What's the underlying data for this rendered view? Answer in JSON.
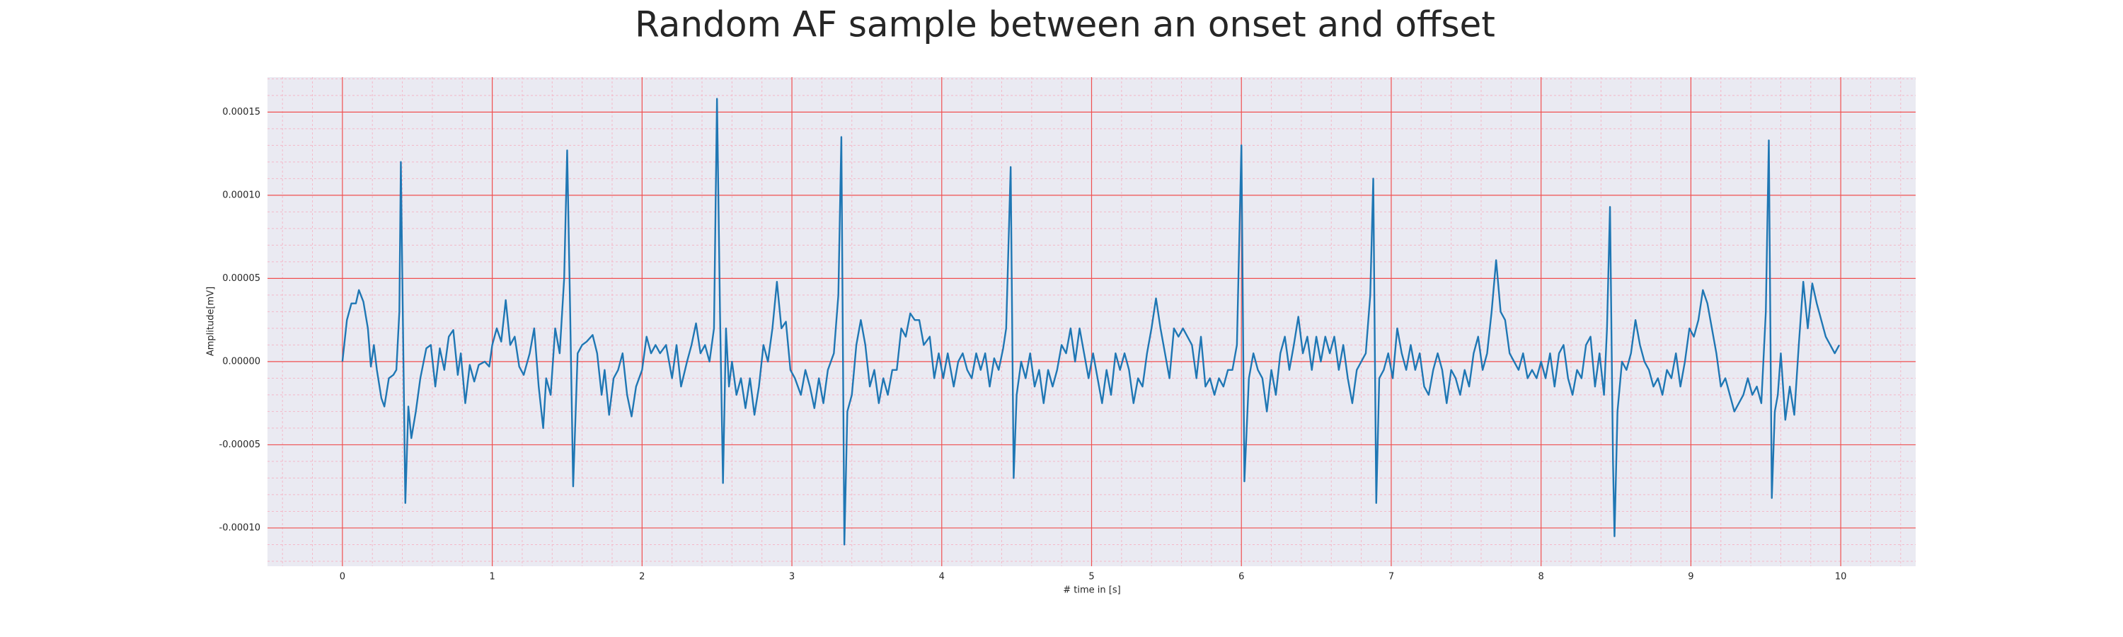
{
  "chart_data": {
    "type": "line",
    "title": "Random AF sample between an onset and offset",
    "xlabel": "# time in [s]",
    "ylabel": "Amplitude[mV]",
    "xlim": [
      -0.5,
      10.5
    ],
    "ylim": [
      -0.000123,
      0.000171
    ],
    "xticks": [
      0,
      1,
      2,
      3,
      4,
      5,
      6,
      7,
      8,
      9,
      10
    ],
    "yticks": [
      {
        "value": -0.0001,
        "label": "-0.00010"
      },
      {
        "value": -5e-05,
        "label": "-0.00005"
      },
      {
        "value": 0,
        "label": "0.00000"
      },
      {
        "value": 5e-05,
        "label": "0.00005"
      },
      {
        "value": 0.0001,
        "label": "0.00010"
      },
      {
        "value": 0.00015,
        "label": "0.00015"
      }
    ],
    "grid": true,
    "minor_grid": true,
    "background": "#eaeaf2",
    "grid_color": "#f05050",
    "minor_grid_color": "#f4b8c8",
    "series": [
      {
        "color": "#1f77b4",
        "x": [
          0,
          0.03,
          0.06,
          0.09,
          0.11,
          0.14,
          0.17,
          0.19,
          0.21,
          0.23,
          0.26,
          0.28,
          0.31,
          0.34,
          0.36,
          0.38,
          0.39,
          0.4,
          0.42,
          0.44,
          0.46,
          0.49,
          0.52,
          0.56,
          0.59,
          0.62,
          0.65,
          0.68,
          0.71,
          0.74,
          0.77,
          0.79,
          0.82,
          0.85,
          0.88,
          0.91,
          0.95,
          0.98,
          1,
          1.03,
          1.06,
          1.09,
          1.12,
          1.15,
          1.18,
          1.21,
          1.25,
          1.28,
          1.31,
          1.34,
          1.36,
          1.39,
          1.42,
          1.45,
          1.48,
          1.5,
          1.52,
          1.54,
          1.57,
          1.6,
          1.63,
          1.67,
          1.7,
          1.73,
          1.75,
          1.78,
          1.81,
          1.84,
          1.87,
          1.9,
          1.93,
          1.96,
          2,
          2.03,
          2.06,
          2.09,
          2.12,
          2.16,
          2.2,
          2.23,
          2.26,
          2.3,
          2.33,
          2.36,
          2.39,
          2.42,
          2.45,
          2.48,
          2.5,
          2.52,
          2.54,
          2.56,
          2.58,
          2.6,
          2.63,
          2.66,
          2.69,
          2.72,
          2.75,
          2.78,
          2.81,
          2.84,
          2.87,
          2.9,
          2.93,
          2.96,
          2.99,
          3.02,
          3.06,
          3.09,
          3.12,
          3.15,
          3.18,
          3.21,
          3.24,
          3.28,
          3.31,
          3.33,
          3.35,
          3.37,
          3.4,
          3.43,
          3.46,
          3.49,
          3.52,
          3.55,
          3.58,
          3.61,
          3.64,
          3.67,
          3.7,
          3.73,
          3.76,
          3.79,
          3.82,
          3.85,
          3.88,
          3.92,
          3.95,
          3.98,
          4.01,
          4.04,
          4.08,
          4.11,
          4.14,
          4.17,
          4.2,
          4.23,
          4.26,
          4.29,
          4.32,
          4.35,
          4.38,
          4.41,
          4.43,
          4.46,
          4.48,
          4.5,
          4.53,
          4.56,
          4.59,
          4.62,
          4.65,
          4.68,
          4.71,
          4.74,
          4.77,
          4.8,
          4.83,
          4.86,
          4.89,
          4.92,
          4.95,
          4.98,
          5.01,
          5.04,
          5.07,
          5.1,
          5.13,
          5.16,
          5.19,
          5.22,
          5.25,
          5.28,
          5.31,
          5.34,
          5.37,
          5.4,
          5.43,
          5.46,
          5.49,
          5.52,
          5.55,
          5.58,
          5.61,
          5.64,
          5.67,
          5.7,
          5.73,
          5.76,
          5.79,
          5.82,
          5.85,
          5.88,
          5.91,
          5.94,
          5.97,
          6,
          6.02,
          6.05,
          6.08,
          6.11,
          6.14,
          6.17,
          6.2,
          6.23,
          6.26,
          6.29,
          6.32,
          6.35,
          6.38,
          6.41,
          6.44,
          6.47,
          6.5,
          6.53,
          6.56,
          6.59,
          6.62,
          6.65,
          6.68,
          6.71,
          6.74,
          6.77,
          6.8,
          6.83,
          6.86,
          6.88,
          6.9,
          6.92,
          6.95,
          6.98,
          7.01,
          7.04,
          7.07,
          7.1,
          7.13,
          7.16,
          7.19,
          7.22,
          7.25,
          7.28,
          7.31,
          7.34,
          7.37,
          7.4,
          7.43,
          7.46,
          7.49,
          7.52,
          7.55,
          7.58,
          7.61,
          7.64,
          7.67,
          7.7,
          7.73,
          7.76,
          7.79,
          7.82,
          7.85,
          7.88,
          7.91,
          7.94,
          7.97,
          8,
          8.03,
          8.06,
          8.09,
          8.12,
          8.15,
          8.18,
          8.21,
          8.24,
          8.27,
          8.3,
          8.33,
          8.36,
          8.39,
          8.42,
          8.44,
          8.46,
          8.48,
          8.49,
          8.51,
          8.54,
          8.57,
          8.6,
          8.63,
          8.66,
          8.69,
          8.72,
          8.75,
          8.78,
          8.81,
          8.84,
          8.87,
          8.9,
          8.93,
          8.96,
          8.99,
          9.02,
          9.05,
          9.08,
          9.11,
          9.14,
          9.17,
          9.2,
          9.23,
          9.26,
          9.29,
          9.32,
          9.35,
          9.38,
          9.41,
          9.44,
          9.47,
          9.5,
          9.52,
          9.54,
          9.56,
          9.58,
          9.6,
          9.63,
          9.66,
          9.69,
          9.72,
          9.75,
          9.78,
          9.81,
          9.84,
          9.87,
          9.9,
          9.93,
          9.96,
          9.99
        ],
        "values": [
          0,
          2.5e-05,
          3.5e-05,
          3.5e-05,
          4.3e-05,
          3.6e-05,
          2e-05,
          -3e-06,
          1e-05,
          -5e-06,
          -2.2e-05,
          -2.7e-05,
          -1e-05,
          -8e-06,
          -5e-06,
          3e-05,
          0.00012,
          5e-05,
          -8.5e-05,
          -2.7e-05,
          -4.6e-05,
          -3e-05,
          -1e-05,
          8e-06,
          1e-05,
          -1.5e-05,
          8e-06,
          -5e-06,
          1.5e-05,
          1.9e-05,
          -8e-06,
          5e-06,
          -2.5e-05,
          -2e-06,
          -1.2e-05,
          -2e-06,
          0,
          -3e-06,
          1e-05,
          2e-05,
          1.2e-05,
          3.7e-05,
          1e-05,
          1.5e-05,
          -3e-06,
          -8e-06,
          5e-06,
          2e-05,
          -1.5e-05,
          -4e-05,
          -1e-05,
          -2e-05,
          2e-05,
          5e-06,
          5e-05,
          0.000127,
          3e-05,
          -7.5e-05,
          5e-06,
          1e-05,
          1.2e-05,
          1.6e-05,
          5e-06,
          -2e-05,
          -5e-06,
          -3.2e-05,
          -1e-05,
          -5e-06,
          5e-06,
          -2e-05,
          -3.3e-05,
          -1.5e-05,
          -5e-06,
          1.5e-05,
          5e-06,
          1e-05,
          5e-06,
          1e-05,
          -1e-05,
          1e-05,
          -1.5e-05,
          0,
          1e-05,
          2.3e-05,
          5e-06,
          1e-05,
          0,
          2e-05,
          0.000158,
          3e-05,
          -7.3e-05,
          2e-05,
          -1.5e-05,
          0,
          -2e-05,
          -1e-05,
          -2.8e-05,
          -1e-05,
          -3.2e-05,
          -1.5e-05,
          1e-05,
          0,
          2e-05,
          4.8e-05,
          2e-05,
          2.4e-05,
          -5e-06,
          -1e-05,
          -2e-05,
          -5e-06,
          -1.5e-05,
          -2.8e-05,
          -1e-05,
          -2.5e-05,
          -5e-06,
          5e-06,
          4e-05,
          0.000135,
          -0.00011,
          -3e-05,
          -2e-05,
          1e-05,
          2.5e-05,
          1e-05,
          -1.5e-05,
          -5e-06,
          -2.5e-05,
          -1e-05,
          -2e-05,
          -5e-06,
          -5e-06,
          2e-05,
          1.5e-05,
          2.9e-05,
          2.5e-05,
          2.5e-05,
          1e-05,
          1.5e-05,
          -1e-05,
          5e-06,
          -1e-05,
          5e-06,
          -1.5e-05,
          0,
          5e-06,
          -5e-06,
          -1e-05,
          5e-06,
          -5e-06,
          5e-06,
          -1.5e-05,
          2e-06,
          -5e-06,
          8e-06,
          2e-05,
          0.000117,
          -7e-05,
          -2e-05,
          0,
          -1e-05,
          5e-06,
          -1.5e-05,
          -5e-06,
          -2.5e-05,
          -5e-06,
          -1.5e-05,
          -5e-06,
          1e-05,
          5e-06,
          2e-05,
          0,
          2e-05,
          5e-06,
          -1e-05,
          5e-06,
          -1e-05,
          -2.5e-05,
          -5e-06,
          -2e-05,
          5e-06,
          -5e-06,
          5e-06,
          -5e-06,
          -2.5e-05,
          -1e-05,
          -1.5e-05,
          5e-06,
          2e-05,
          3.8e-05,
          2e-05,
          5e-06,
          -1e-05,
          2e-05,
          1.5e-05,
          2e-05,
          1.5e-05,
          1e-05,
          -1e-05,
          1.5e-05,
          -1.5e-05,
          -1e-05,
          -2e-05,
          -1e-05,
          -1.5e-05,
          -5e-06,
          -5e-06,
          1e-05,
          0.00013,
          -7.2e-05,
          -1e-05,
          5e-06,
          -5e-06,
          -1e-05,
          -3e-05,
          -5e-06,
          -2e-05,
          5e-06,
          1.5e-05,
          -5e-06,
          1e-05,
          2.7e-05,
          5e-06,
          1.5e-05,
          -5e-06,
          1.5e-05,
          0,
          1.5e-05,
          5e-06,
          1.5e-05,
          -5e-06,
          1e-05,
          -1e-05,
          -2.5e-05,
          -5e-06,
          0,
          5e-06,
          4e-05,
          0.00011,
          -8.5e-05,
          -1e-05,
          -5e-06,
          5e-06,
          -1e-05,
          2e-05,
          5e-06,
          -5e-06,
          1e-05,
          -5e-06,
          5e-06,
          -1.5e-05,
          -2e-05,
          -5e-06,
          5e-06,
          -5e-06,
          -2.5e-05,
          -5e-06,
          -1e-05,
          -2e-05,
          -5e-06,
          -1.5e-05,
          5e-06,
          1.5e-05,
          -5e-06,
          5e-06,
          3e-05,
          6.1e-05,
          3e-05,
          2.5e-05,
          5e-06,
          0,
          -5e-06,
          5e-06,
          -1e-05,
          -5e-06,
          -1e-05,
          0,
          -1e-05,
          5e-06,
          -1.5e-05,
          5e-06,
          1e-05,
          -1e-05,
          -2e-05,
          -5e-06,
          -1e-05,
          1e-05,
          1.5e-05,
          -1.5e-05,
          5e-06,
          -2e-05,
          2e-05,
          9.3e-05,
          -6e-05,
          -0.000105,
          -3e-05,
          0,
          -5e-06,
          5e-06,
          2.5e-05,
          1e-05,
          0,
          -5e-06,
          -1.5e-05,
          -1e-05,
          -2e-05,
          -5e-06,
          -1e-05,
          5e-06,
          -1.5e-05,
          0,
          2e-05,
          1.5e-05,
          2.5e-05,
          4.3e-05,
          3.5e-05,
          2e-05,
          5e-06,
          -1.5e-05,
          -1e-05,
          -2e-05,
          -3e-05,
          -2.5e-05,
          -2e-05,
          -1e-05,
          -2e-05,
          -1.5e-05,
          -2.5e-05,
          3e-05,
          0.000133,
          -8.2e-05,
          -3e-05,
          -2e-05,
          5e-06,
          -3.5e-05,
          -1.5e-05,
          -3.2e-05,
          1e-05,
          4.8e-05,
          2e-05,
          4.7e-05,
          3.5e-05,
          2.5e-05,
          1.5e-05,
          1e-05,
          5e-06,
          1e-05
        ]
      }
    ]
  }
}
